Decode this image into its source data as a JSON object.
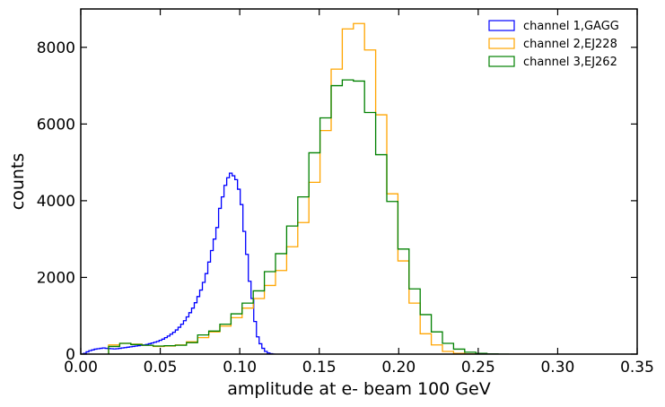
{
  "chart_data": {
    "type": "histogram",
    "title": "",
    "xlabel": "amplitude at e- beam 100 GeV",
    "ylabel": "counts",
    "xlim": [
      0.0,
      0.35
    ],
    "ylim": [
      0,
      9000
    ],
    "x_ticks": [
      0.0,
      0.05,
      0.1,
      0.15,
      0.2,
      0.25,
      0.3,
      0.35
    ],
    "x_tick_labels": [
      "0.00",
      "0.05",
      "0.10",
      "0.15",
      "0.20",
      "0.25",
      "0.30",
      "0.35"
    ],
    "y_ticks": [
      0,
      2000,
      4000,
      6000,
      8000
    ],
    "y_tick_labels": [
      "0",
      "2000",
      "4000",
      "6000",
      "8000"
    ],
    "legend_position": "top-right",
    "series": [
      {
        "name": "channel 1,GAGG",
        "color": "#0000ff",
        "bin_start": 0.0,
        "bin_width": 0.0017,
        "values": [
          0,
          20,
          60,
          90,
          110,
          130,
          140,
          150,
          160,
          150,
          145,
          140,
          135,
          140,
          150,
          160,
          170,
          180,
          190,
          200,
          210,
          220,
          230,
          240,
          250,
          270,
          290,
          310,
          330,
          360,
          390,
          430,
          470,
          520,
          570,
          630,
          700,
          780,
          870,
          970,
          1080,
          1200,
          1340,
          1500,
          1670,
          1870,
          2100,
          2400,
          2700,
          3000,
          3300,
          3800,
          4100,
          4400,
          4600,
          4720,
          4650,
          4550,
          4300,
          3900,
          3200,
          2600,
          1900,
          1450,
          850,
          450,
          270,
          150,
          70,
          30,
          10,
          0
        ]
      },
      {
        "name": "channel 2,EJ228",
        "color": "#ffa500",
        "bin_start": 0.0175,
        "bin_width": 0.007,
        "values": [
          240,
          280,
          260,
          230,
          200,
          210,
          240,
          320,
          430,
          580,
          730,
          950,
          1200,
          1450,
          1790,
          2180,
          2800,
          3430,
          4480,
          5830,
          7430,
          8480,
          8620,
          7930,
          6240,
          4180,
          2430,
          1330,
          530,
          240,
          70,
          20,
          5,
          0
        ]
      },
      {
        "name": "channel 3,EJ262",
        "color": "#008000",
        "bin_start": 0.0175,
        "bin_width": 0.007,
        "values": [
          200,
          280,
          250,
          230,
          210,
          220,
          230,
          300,
          500,
          600,
          780,
          1050,
          1330,
          1650,
          2150,
          2620,
          3340,
          4100,
          5250,
          6160,
          7000,
          7150,
          7120,
          6300,
          5200,
          3980,
          2740,
          1700,
          1030,
          580,
          280,
          130,
          50,
          20,
          5,
          0
        ]
      }
    ]
  }
}
